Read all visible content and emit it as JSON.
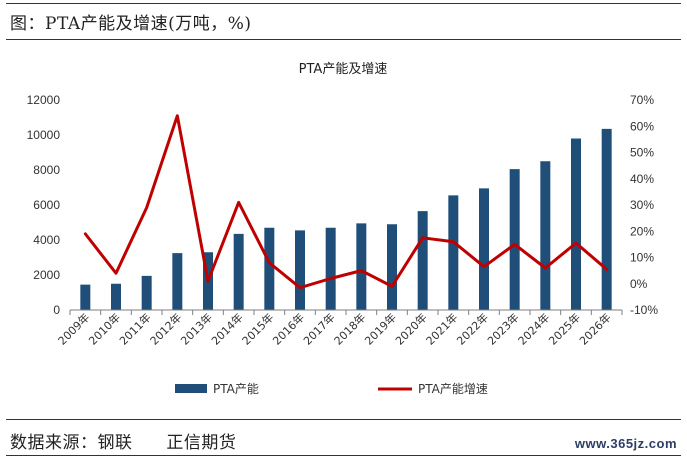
{
  "header": {
    "caption": "图：PTA产能及增速(万吨，%)"
  },
  "footer": {
    "source_label": "数据来源：钢联",
    "publisher": "正信期货"
  },
  "watermark": {
    "text": "www.365jz.com"
  },
  "colors": {
    "bar": "#1f4e79",
    "line": "#c00000",
    "rule": "#333333"
  },
  "chart_data": {
    "type": "bar",
    "title": "PTA产能及增速",
    "categories": [
      "2009年",
      "2010年",
      "2011年",
      "2012年",
      "2013年",
      "2014年",
      "2015年",
      "2016年",
      "2017年",
      "2018年",
      "2019年",
      "2020年",
      "2021年",
      "2022年",
      "2023年",
      "2024年",
      "2025年",
      "2026年"
    ],
    "series": [
      {
        "name": "PTA产能",
        "type": "bar",
        "axis": "left",
        "values": [
          1450,
          1500,
          1950,
          3250,
          3300,
          4350,
          4700,
          4550,
          4700,
          4950,
          4900,
          5650,
          6550,
          6950,
          8050,
          8500,
          9800,
          10350
        ]
      },
      {
        "name": "PTA产能增速",
        "type": "line",
        "axis": "right",
        "values": [
          19,
          4,
          29,
          64,
          1,
          31,
          8,
          -1.5,
          2,
          5,
          -1,
          17.5,
          16,
          6.5,
          15,
          6,
          15.5,
          5.5
        ]
      }
    ],
    "y_left": {
      "min": 0,
      "max": 12000,
      "ticks": [
        "0",
        "2000",
        "4000",
        "6000",
        "8000",
        "10000",
        "12000"
      ]
    },
    "y_right": {
      "min": -10,
      "max": 70,
      "ticks": [
        "-10%",
        "0%",
        "10%",
        "20%",
        "30%",
        "40%",
        "50%",
        "60%",
        "70%"
      ]
    },
    "grid": false,
    "legend_position": "bottom"
  }
}
